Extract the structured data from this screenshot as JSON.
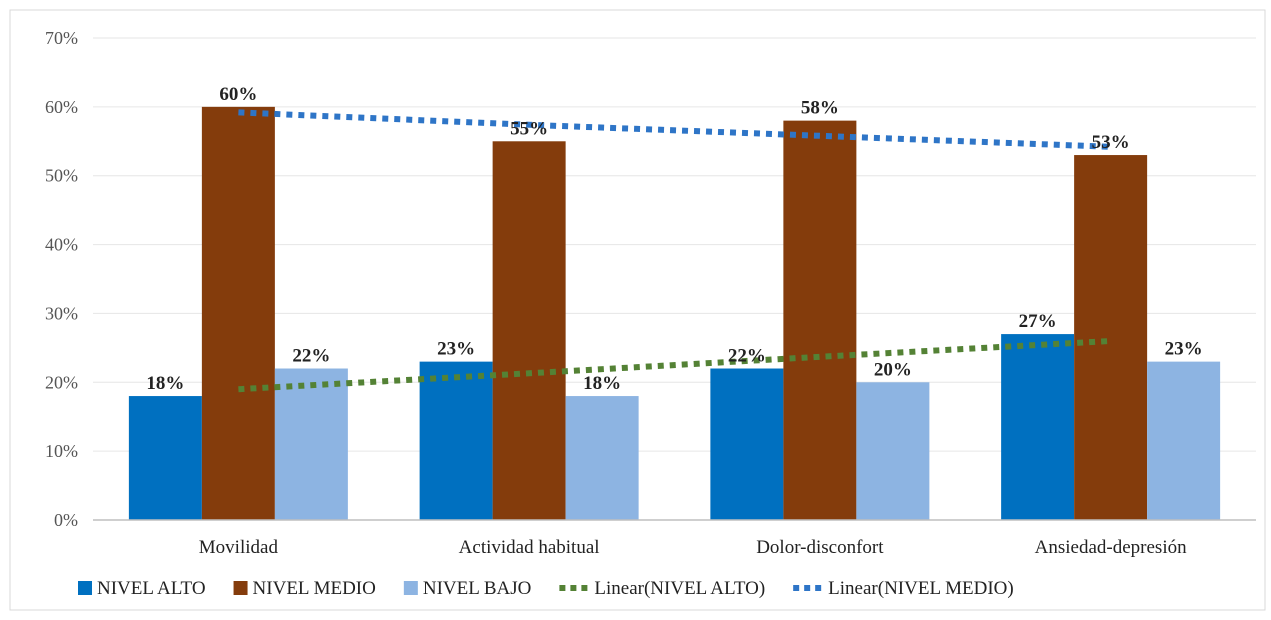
{
  "chart_data": {
    "type": "bar",
    "categories": [
      "Movilidad",
      "Actividad habitual",
      "Dolor-disconfort",
      "Ansiedad-depresión"
    ],
    "series": [
      {
        "name": "NIVEL ALTO",
        "values": [
          18,
          23,
          22,
          27
        ],
        "labels": [
          "18%",
          "23%",
          "22%",
          "27%"
        ],
        "color": "#0070c0"
      },
      {
        "name": "NIVEL MEDIO",
        "values": [
          60,
          55,
          58,
          53
        ],
        "labels": [
          "60%",
          "55%",
          "58%",
          "53%"
        ],
        "color": "#843c0c"
      },
      {
        "name": "NIVEL BAJO",
        "values": [
          22,
          18,
          20,
          23
        ],
        "labels": [
          "22%",
          "18%",
          "20%",
          "23%"
        ],
        "color": "#8db4e2"
      }
    ],
    "trendlines": [
      {
        "name": "Linear(NIVEL ALTO)",
        "of_series": "NIVEL ALTO",
        "color": "#548235",
        "values": [
          19,
          21.3,
          23.7,
          26
        ]
      },
      {
        "name": "Linear(NIVEL MEDIO)",
        "of_series": "NIVEL MEDIO",
        "color": "#2e75c7",
        "values": [
          59.2,
          57.4,
          55.8,
          54.2
        ]
      }
    ],
    "ylim": [
      0,
      70
    ],
    "yticks": [
      "0%",
      "10%",
      "20%",
      "30%",
      "40%",
      "50%",
      "60%",
      "70%"
    ],
    "grid": true,
    "legend_position": "bottom"
  }
}
